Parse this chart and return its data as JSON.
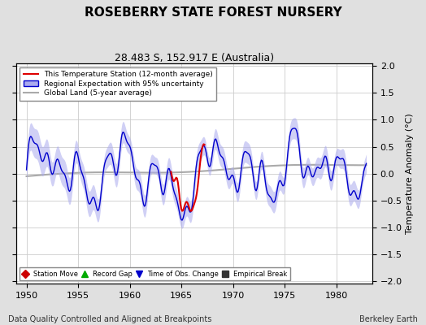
{
  "title": "ROSEBERRY STATE FOREST NURSERY",
  "subtitle": "28.483 S, 152.917 E (Australia)",
  "xlabel_left": "Data Quality Controlled and Aligned at Breakpoints",
  "xlabel_right": "Berkeley Earth",
  "ylabel": "Temperature Anomaly (°C)",
  "xlim": [
    1949.0,
    1983.5
  ],
  "ylim": [
    -2.05,
    2.05
  ],
  "yticks": [
    -2,
    -1.5,
    -1,
    -0.5,
    0,
    0.5,
    1,
    1.5,
    2
  ],
  "xticks": [
    1950,
    1955,
    1960,
    1965,
    1970,
    1975,
    1980
  ],
  "background_color": "#e0e0e0",
  "plot_background_color": "#ffffff",
  "grid_color": "#cccccc",
  "red_line_color": "#dd0000",
  "blue_line_color": "#0000cc",
  "blue_fill_color": "#aaaaee",
  "gray_line_color": "#aaaaaa",
  "legend_line_labels": [
    "This Temperature Station (12-month average)",
    "Regional Expectation with 95% uncertainty",
    "Global Land (5-year average)"
  ],
  "bottom_legend_labels": [
    "Station Move",
    "Record Gap",
    "Time of Obs. Change",
    "Empirical Break"
  ],
  "bottom_legend_colors": [
    "#cc0000",
    "#00aa00",
    "#0000cc",
    "#333333"
  ],
  "bottom_legend_markers": [
    "D",
    "^",
    "v",
    "s"
  ],
  "title_fontsize": 11,
  "subtitle_fontsize": 9,
  "tick_fontsize": 8,
  "label_fontsize": 7
}
